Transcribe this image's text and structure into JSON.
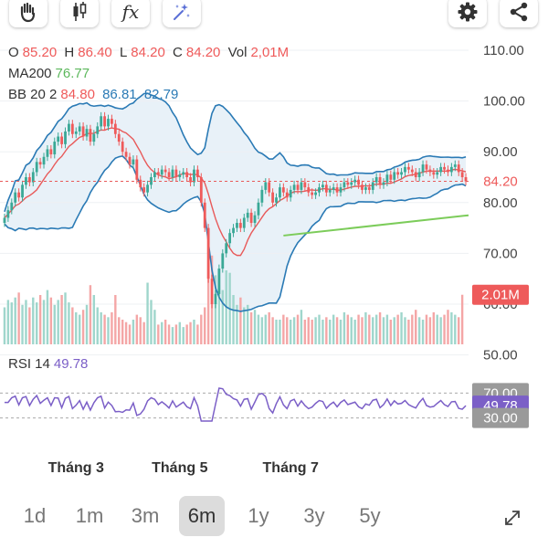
{
  "toolbar": {
    "left_icons": [
      "hand-icon",
      "candlestick-icon",
      "function-icon",
      "magic-icon"
    ],
    "function_label": "fx",
    "right_icons": [
      "gear-icon",
      "share-icon"
    ]
  },
  "ohlc": {
    "o_label": "O",
    "o": "85.20",
    "h_label": "H",
    "h": "86.40",
    "l_label": "L",
    "l": "84.20",
    "c_label": "C",
    "c": "84.20",
    "vol_label": "Vol",
    "vol": "2,01M"
  },
  "ma": {
    "label": "MA200",
    "value": "76.77"
  },
  "bb": {
    "label": "BB 20 2",
    "value1": "84.80",
    "value2": "86.81",
    "value3": "82.79"
  },
  "rsi": {
    "label": "RSI 14",
    "value": "49.78"
  },
  "badges": {
    "price": "84.20",
    "volume": "2.01M",
    "rsi_upper": "70.00",
    "rsi_value": "49.78",
    "rsi_lower": "30.00"
  },
  "ranges": [
    "1d",
    "1m",
    "3m",
    "6m",
    "1y",
    "3y",
    "5y"
  ],
  "active_range": "6m",
  "colors": {
    "up": "#3aa896",
    "down": "#ef5a5a",
    "bb": "#2a7ab5",
    "bb_fill": "#e8f1f8",
    "ma": "#e85a5a",
    "trend": "#7ccc5a",
    "rsi": "#7b5fc7",
    "badge_gray": "#9a9a9a",
    "badge_red": "#ee5a5a",
    "badge_purple": "#7b5fc7"
  },
  "chart_data": {
    "type": "candlestick",
    "y_axis": {
      "ticks": [
        110,
        100,
        90,
        80,
        70,
        60,
        50
      ],
      "labels": [
        "110.00",
        "100.00",
        "90.00",
        "80.00",
        "70.00",
        "60.00",
        "50.00"
      ],
      "range": [
        50,
        112
      ]
    },
    "x_axis": {
      "labels": [
        "Tháng 3",
        "Tháng 5",
        "Tháng 7"
      ],
      "label_index": [
        20,
        49,
        80
      ]
    },
    "last_price": 84.2,
    "candles_close": [
      77,
      78.5,
      80,
      82,
      81,
      83.5,
      85,
      84,
      86,
      88,
      87.5,
      89,
      90.5,
      89.5,
      92,
      93,
      91.5,
      94,
      95.5,
      93.5,
      94,
      95,
      93,
      94.5,
      92,
      93.5,
      95,
      97,
      95,
      96.5,
      95.5,
      93.5,
      92,
      90,
      89,
      87.5,
      88.5,
      84.5,
      83,
      82,
      83.5,
      85,
      86,
      85.5,
      86.5,
      86,
      85,
      86.5,
      85,
      85.5,
      86,
      85,
      84,
      86.5,
      85,
      80,
      75,
      65,
      60,
      62,
      67,
      70,
      72,
      74,
      75,
      76,
      75,
      77,
      78,
      76,
      77.5,
      80,
      82.5,
      84,
      82,
      80,
      81,
      83,
      82,
      81,
      82.5,
      83.5,
      82.5,
      84,
      83,
      82,
      81.5,
      82,
      83,
      83.5,
      82,
      82.5,
      83,
      82,
      83,
      84,
      83.5,
      84,
      84.5,
      83.5,
      82.5,
      83,
      82.5,
      84,
      85,
      83.5,
      84,
      85.5,
      84.5,
      86,
      85.5,
      86,
      87,
      86.5,
      86,
      85,
      86,
      87.5,
      86.5,
      86,
      85.5,
      86,
      87,
      86.5,
      86,
      87,
      87.5,
      86,
      85,
      84.2
    ],
    "volume_values_m": [
      1.5,
      1.8,
      1.7,
      1.9,
      2.1,
      1.6,
      1.8,
      1.5,
      1.9,
      1.7,
      2,
      1.8,
      2.2,
      1.9,
      1.6,
      1.8,
      2,
      2.1,
      1.7,
      1.5,
      1.3,
      1.2,
      1.4,
      1.6,
      2.4,
      2,
      1.5,
      1.3,
      1.2,
      1.1,
      1.3,
      2,
      1.1,
      1,
      0.9,
      0.8,
      1,
      1.2,
      1.1,
      0.9,
      2.5,
      1.8,
      1.4,
      0.8,
      0.9,
      1,
      0.8,
      0.7,
      0.8,
      0.9,
      0.7,
      0.8,
      0.9,
      1,
      0.8,
      1.2,
      1.5,
      3.4,
      3.6,
      2.8,
      2.4,
      2.2,
      3,
      2.9,
      2,
      1.6,
      1.9,
      1.5,
      1.6,
      1.3,
      1.4,
      1.2,
      1.1,
      1.2,
      1.3,
      1.1,
      1,
      1,
      1.2,
      1.1,
      1,
      1.1,
      1.2,
      1.4,
      1,
      1.1,
      1,
      1.1,
      1.2,
      1,
      1.1,
      1,
      1.2,
      1.1,
      1,
      1.3,
      1.2,
      1.1,
      1,
      1.2,
      1.1,
      1.3,
      1.2,
      1.1,
      1.2,
      1.3,
      1.1,
      1.2,
      1,
      1.1,
      1.2,
      1.3,
      1.1,
      1,
      1.2,
      1.4,
      1.1,
      1,
      1.2,
      1.1,
      1.3,
      1.2,
      1.1,
      1.2,
      1.4,
      1.3,
      1.2,
      1.1,
      2.01
    ],
    "rsi": {
      "upper": 70,
      "lower": 30,
      "last": 49.78
    },
    "ma200_trendline": {
      "from": 73.5,
      "to": 77.5
    }
  }
}
